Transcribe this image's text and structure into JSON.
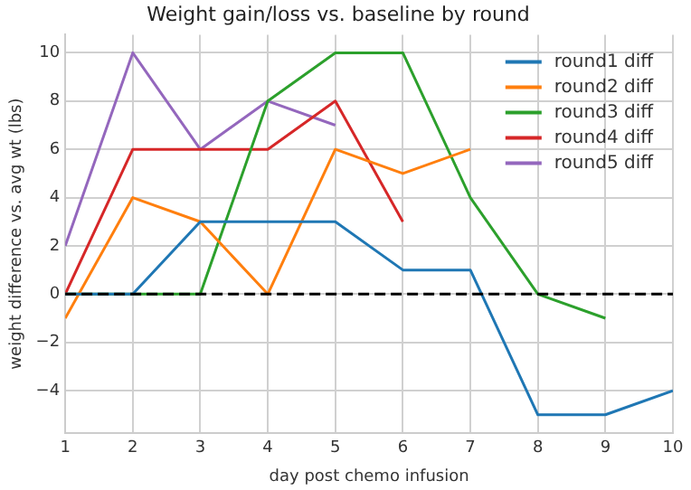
{
  "chart_data": {
    "type": "line",
    "title": "Weight gain/loss vs. baseline by round",
    "xlabel": "day post chemo infusion",
    "ylabel": "weight difference vs. avg wt (lbs)",
    "series": [
      {
        "name": "round1 diff",
        "color": "#1f77b4",
        "x": [
          1,
          2,
          3,
          4,
          5,
          6,
          7,
          8,
          9,
          10
        ],
        "values": [
          0,
          0,
          3,
          3,
          3,
          1,
          1,
          -5,
          -5,
          -4
        ]
      },
      {
        "name": "round2 diff",
        "color": "#ff7f0e",
        "x": [
          1,
          2,
          3,
          4,
          5,
          6,
          7
        ],
        "values": [
          -1,
          4,
          3,
          0,
          6,
          5,
          6
        ]
      },
      {
        "name": "round3 diff",
        "color": "#2ca02c",
        "x": [
          1,
          2,
          3,
          4,
          5,
          6,
          7,
          8,
          9
        ],
        "values": [
          0,
          0,
          0,
          8,
          10,
          10,
          4,
          0,
          -1
        ]
      },
      {
        "name": "round4 diff",
        "color": "#d62728",
        "x": [
          1,
          2,
          3,
          4,
          5,
          6
        ],
        "values": [
          0,
          6,
          6,
          6,
          8,
          3
        ]
      },
      {
        "name": "round5 diff",
        "color": "#9467bd",
        "x": [
          1,
          2,
          3,
          4,
          5
        ],
        "values": [
          2,
          10,
          6,
          8,
          7
        ]
      }
    ],
    "xlim": [
      1,
      10
    ],
    "xticks": [
      1,
      2,
      3,
      4,
      5,
      6,
      7,
      8,
      9,
      10
    ],
    "ylim": [
      -5.75,
      10.75
    ],
    "yticks": [
      -4,
      -2,
      0,
      2,
      4,
      6,
      8,
      10
    ],
    "ref_lines": [
      {
        "axis": "y",
        "value": 0,
        "color": "#000000",
        "line_style": "dashed"
      }
    ],
    "grid": true,
    "legend": "top right",
    "marker": "none",
    "line_style": "solid"
  }
}
